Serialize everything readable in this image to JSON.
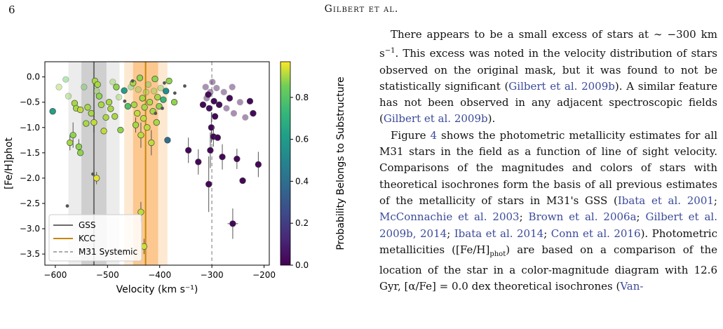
{
  "page": {
    "page_number": "6",
    "running_head_text": "Gilbert et al."
  },
  "body_text": {
    "p1_pre": "There appears to be a small excess of stars at ∼ −300 km s",
    "p1_sup": "−1",
    "p1_mid": ". This excess was noted in the velocity distribution of stars observed on the original mask, but it was found to not be statistically significant (",
    "p1_link1": "Gilbert et al. 2009b",
    "p1_mid2": "). A similar feature has not been observed in any adjacent spectroscopic fields (",
    "p1_link2": "Gilbert et al. 2009b",
    "p1_end": ").",
    "p2_a": "Figure ",
    "p2_fig": "4",
    "p2_b": " shows the photometric metallicity estimates for all M31 stars in the field as a function of line of sight velocity. Comparisons of the magnitudes and colors of stars with theoretical isochrones form the basis of all previous estimates of the metallicity of stars in M31's GSS (",
    "p2_ref1": "Ibata et al. 2001",
    "p2_ref2": "McConnachie et al. 2003",
    "p2_ref3": "Brown et al. 2006a",
    "p2_ref4": "Gilbert et al. 2009b, 2014",
    "p2_ref5": "Ibata et al. 2014",
    "p2_ref6": "Conn et al. 2016",
    "p2_c": "). Photometric metallicities ([Fe/H]",
    "p2_sub": "phot",
    "p2_d": ") are based on a comparison of the location of the star in a color-magnitude diagram with 12.6 Gyr, [α/Fe] = 0.0 dex theoretical isochrones (",
    "p2_ref7": "Van-"
  },
  "chart_data": {
    "type": "scatter",
    "xlabel": "Velocity (km s⁻¹)",
    "ylabel": "[Fe/H]phot",
    "colorbar_label": "Probability Belongs to Substructure",
    "xlim": [
      -620,
      -190
    ],
    "ylim": [
      -3.72,
      0.3
    ],
    "xticks": [
      "−600",
      "−500",
      "−400",
      "−300",
      "−200"
    ],
    "xtick_values": [
      -600,
      -500,
      -400,
      -300,
      -200
    ],
    "yticks": [
      "0.0",
      "−0.5",
      "−1.0",
      "−1.5",
      "−2.0",
      "−2.5",
      "−3.0",
      "−3.5"
    ],
    "ytick_values": [
      0.0,
      -0.5,
      -1.0,
      -1.5,
      -2.0,
      -2.5,
      -3.0,
      -3.5
    ],
    "cbar_ticks": [
      "0.0",
      "0.2",
      "0.4",
      "0.6",
      "0.8"
    ],
    "cbar_tick_values": [
      0.0,
      0.2,
      0.4,
      0.6,
      0.8
    ],
    "cbar_range": [
      0,
      0.97
    ],
    "legend": {
      "placement": "lower-left",
      "entries": [
        {
          "label": "GSS",
          "color": "#555555",
          "style": "solid"
        },
        {
          "label": "KCC",
          "color": "#c8860a",
          "style": "solid"
        },
        {
          "label": "M31 Systemic",
          "color": "#aaaaaa",
          "style": "dashed"
        }
      ]
    },
    "bands": [
      {
        "name": "GSS",
        "center": -526,
        "inner": [
          -550,
          -502
        ],
        "outer": [
          -575,
          -477
        ],
        "inner_color": "#cfcfcf",
        "outer_color": "#ececec"
      },
      {
        "name": "KCC",
        "center": -427,
        "inner": [
          -451,
          -403
        ],
        "outer": [
          -468,
          -385
        ],
        "inner_color": "#fcc88f",
        "outer_color": "#fde9d2"
      }
    ],
    "line_colors": {
      "gss": "#6b6b6b",
      "kcc": "#c8860a",
      "systemic": "#aaaaaa"
    },
    "systemic_velocity": -300,
    "colormap": "viridis",
    "points": [
      {
        "v": -605,
        "feh": -0.68,
        "p": 0.62
      },
      {
        "v": -593,
        "feh": -0.2,
        "p": 0.9,
        "faded": true
      },
      {
        "v": -580,
        "feh": -0.05,
        "p": 0.82,
        "faded": true
      },
      {
        "v": -575,
        "feh": -0.38,
        "p": 0.88,
        "faded": true
      },
      {
        "v": -572,
        "feh": -1.3,
        "p": 0.9,
        "err": 0.15
      },
      {
        "v": -566,
        "feh": -1.15,
        "p": 0.88,
        "err": 0.25
      },
      {
        "v": -563,
        "feh": -0.52,
        "p": 0.9
      },
      {
        "v": -560,
        "feh": -0.62,
        "p": 0.9
      },
      {
        "v": -555,
        "feh": -1.38,
        "p": 0.88,
        "err": 0.15
      },
      {
        "v": -552,
        "feh": -1.5,
        "p": 0.88
      },
      {
        "v": -552,
        "feh": -0.65,
        "p": 0.92
      },
      {
        "v": -545,
        "feh": -0.2,
        "p": 0.85,
        "faded": true
      },
      {
        "v": -541,
        "feh": -0.92,
        "p": 0.9
      },
      {
        "v": -538,
        "feh": -0.6,
        "p": 0.9
      },
      {
        "v": -531,
        "feh": -0.72,
        "p": 0.9
      },
      {
        "v": -526,
        "feh": -0.9,
        "p": 0.92,
        "err": 0.2
      },
      {
        "v": -524,
        "feh": -0.08,
        "p": 0.9
      },
      {
        "v": -521,
        "feh": -0.28,
        "p": 0.88,
        "faded": true
      },
      {
        "v": -519,
        "feh": -0.15,
        "p": 0.9
      },
      {
        "v": -516,
        "feh": -0.38,
        "p": 0.88
      },
      {
        "v": -521,
        "feh": -2.0,
        "p": 0.95,
        "err": 0.12
      },
      {
        "v": -512,
        "feh": -0.55,
        "p": 0.9
      },
      {
        "v": -507,
        "feh": -1.07,
        "p": 0.92
      },
      {
        "v": -503,
        "feh": -0.8,
        "p": 0.9
      },
      {
        "v": -497,
        "feh": -0.5,
        "p": 0.9
      },
      {
        "v": -494,
        "feh": -0.63,
        "p": 0.9
      },
      {
        "v": -490,
        "feh": -0.1,
        "p": 0.88,
        "faded": true
      },
      {
        "v": -486,
        "feh": -0.78,
        "p": 0.9
      },
      {
        "v": -483,
        "feh": -0.2,
        "p": 0.88
      },
      {
        "v": -478,
        "feh": -0.4,
        "p": 0.88,
        "faded": true
      },
      {
        "v": -475,
        "feh": -1.05,
        "p": 0.88
      },
      {
        "v": -468,
        "feh": -0.27,
        "p": 0.62
      },
      {
        "v": -461,
        "feh": -0.58,
        "p": 0.78
      },
      {
        "v": -455,
        "feh": -0.2,
        "p": 0.82,
        "faded": true
      },
      {
        "v": -451,
        "feh": -0.12,
        "p": 0.9
      },
      {
        "v": -449,
        "feh": -0.55,
        "p": 0.9
      },
      {
        "v": -446,
        "feh": -0.95,
        "p": 0.9,
        "err": 0.15
      },
      {
        "v": -443,
        "feh": -0.72,
        "p": 0.92
      },
      {
        "v": -441,
        "feh": -0.25,
        "p": 0.88,
        "faded": true
      },
      {
        "v": -438,
        "feh": -0.02,
        "p": 0.88
      },
      {
        "v": -436,
        "feh": -1.15,
        "p": 0.92,
        "err": 0.25
      },
      {
        "v": -433,
        "feh": -0.42,
        "p": 0.9
      },
      {
        "v": -431,
        "feh": -0.82,
        "p": 0.92
      },
      {
        "v": -429,
        "feh": -0.6,
        "p": 0.9
      },
      {
        "v": -426,
        "feh": -0.3,
        "p": 0.88,
        "faded": true
      },
      {
        "v": -424,
        "feh": -1.0,
        "p": 0.92
      },
      {
        "v": -422,
        "feh": -0.15,
        "p": 0.85,
        "faded": true
      },
      {
        "v": -419,
        "feh": -0.5,
        "p": 0.9
      },
      {
        "v": -416,
        "feh": -1.3,
        "p": 0.92,
        "err": 0.25
      },
      {
        "v": -413,
        "feh": -0.68,
        "p": 0.9
      },
      {
        "v": -411,
        "feh": -0.28,
        "p": 0.88,
        "faded": true
      },
      {
        "v": -409,
        "feh": -0.04,
        "p": 0.88
      },
      {
        "v": -406,
        "feh": -0.9,
        "p": 0.9
      },
      {
        "v": -404,
        "feh": -0.4,
        "p": 0.9
      },
      {
        "v": -401,
        "feh": -0.58,
        "p": 0.88
      },
      {
        "v": -398,
        "feh": -0.22,
        "p": 0.86,
        "faded": true
      },
      {
        "v": -436,
        "feh": -2.67,
        "p": 0.92,
        "err": 0.2
      },
      {
        "v": -430,
        "feh": -3.35,
        "p": 0.93,
        "err": 0.15
      },
      {
        "v": -393,
        "feh": -0.45,
        "p": 0.72
      },
      {
        "v": -388,
        "feh": -0.28,
        "p": 0.55
      },
      {
        "v": -385,
        "feh": -1.25,
        "p": 0.4
      },
      {
        "v": -382,
        "feh": -0.08,
        "p": 0.88
      },
      {
        "v": -372,
        "feh": -0.5,
        "p": 0.88
      },
      {
        "v": -345,
        "feh": -1.45,
        "p": 0.02,
        "err": 0.25
      },
      {
        "v": -326,
        "feh": -1.68,
        "p": 0.02,
        "err": 0.25
      },
      {
        "v": -317,
        "feh": -0.55,
        "p": 0.02
      },
      {
        "v": -312,
        "feh": -0.2,
        "p": 0.04,
        "faded": true
      },
      {
        "v": -310,
        "feh": -0.42,
        "p": 0.04,
        "faded": true
      },
      {
        "v": -307,
        "feh": -0.35,
        "p": 0.02
      },
      {
        "v": -305,
        "feh": -0.62,
        "p": 0.05
      },
      {
        "v": -303,
        "feh": -0.3,
        "p": 0.03,
        "faded": true
      },
      {
        "v": -301,
        "feh": -1.0,
        "p": 0.02,
        "err": 0.3
      },
      {
        "v": -299,
        "feh": -0.1,
        "p": 0.04,
        "faded": true
      },
      {
        "v": -297,
        "feh": -1.18,
        "p": 0.02,
        "err": 0.2
      },
      {
        "v": -296,
        "feh": -0.48,
        "p": 0.03
      },
      {
        "v": -294,
        "feh": -0.78,
        "p": 0.02
      },
      {
        "v": -291,
        "feh": -0.22,
        "p": 0.04,
        "faded": true
      },
      {
        "v": -289,
        "feh": -1.2,
        "p": 0.02
      },
      {
        "v": -286,
        "feh": -0.55,
        "p": 0.03
      },
      {
        "v": -306,
        "feh": -2.12,
        "p": 0.02,
        "err": 0.55
      },
      {
        "v": -303,
        "feh": -1.45,
        "p": 0.02,
        "err": 0.35
      },
      {
        "v": -280,
        "feh": -1.58,
        "p": 0.02,
        "err": 0.25
      },
      {
        "v": -277,
        "feh": -0.3,
        "p": 0.04,
        "faded": true
      },
      {
        "v": -272,
        "feh": -0.62,
        "p": 0.03,
        "faded": true
      },
      {
        "v": -266,
        "feh": -0.42,
        "p": 0.03
      },
      {
        "v": -261,
        "feh": -0.2,
        "p": 0.05,
        "faded": true
      },
      {
        "v": -258,
        "feh": -0.72,
        "p": 0.02,
        "faded": true
      },
      {
        "v": -252,
        "feh": -1.62,
        "p": 0.02,
        "err": 0.2
      },
      {
        "v": -246,
        "feh": -0.5,
        "p": 0.03,
        "faded": true
      },
      {
        "v": -241,
        "feh": -2.05,
        "p": 0.02
      },
      {
        "v": -236,
        "feh": -0.8,
        "p": 0.03,
        "faded": true
      },
      {
        "v": -227,
        "feh": -0.48,
        "p": 0.03
      },
      {
        "v": -221,
        "feh": -0.72,
        "p": 0.03
      },
      {
        "v": -211,
        "feh": -1.73,
        "p": 0.02,
        "err": 0.25
      },
      {
        "v": -260,
        "feh": -2.9,
        "p": 0.02,
        "err": 0.3,
        "xerr": 10
      }
    ],
    "unmatched_points": [
      {
        "v": -577,
        "feh": -2.55
      },
      {
        "v": -528,
        "feh": -1.92
      },
      {
        "v": -467,
        "feh": -0.48
      },
      {
        "v": -452,
        "feh": -0.08
      },
      {
        "v": -408,
        "feh": -0.72
      },
      {
        "v": -395,
        "feh": -0.62
      },
      {
        "v": -391,
        "feh": -0.12
      },
      {
        "v": -371,
        "feh": -0.32
      },
      {
        "v": -352,
        "feh": -0.18
      }
    ]
  }
}
